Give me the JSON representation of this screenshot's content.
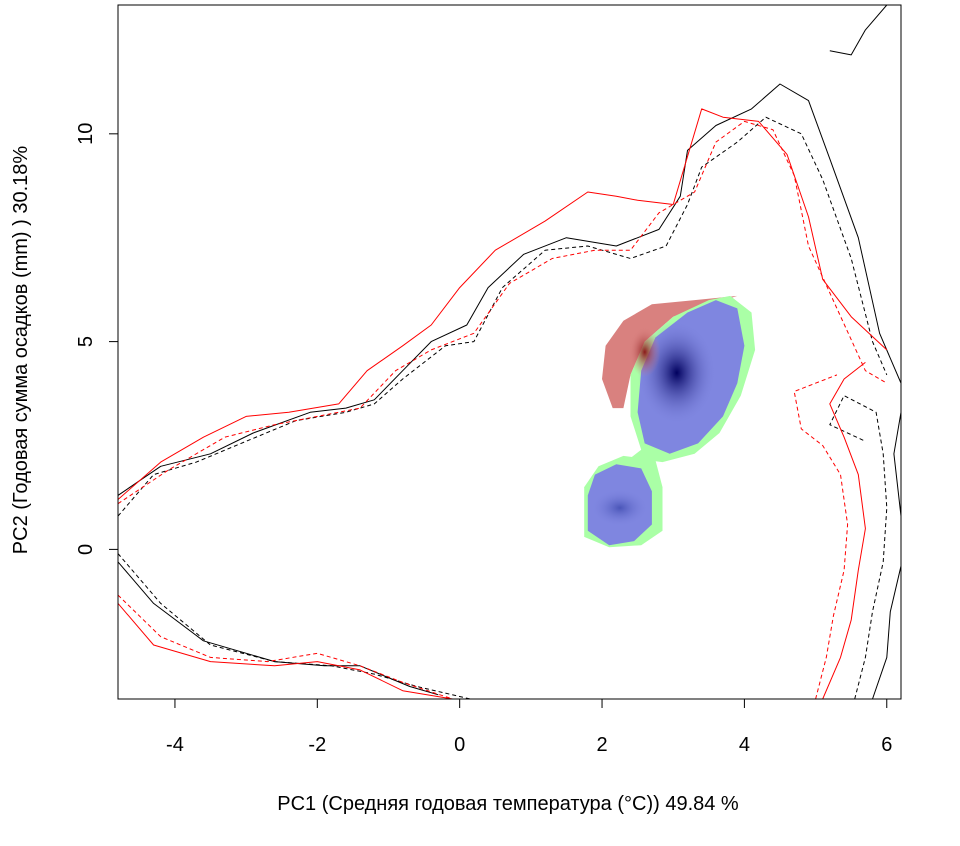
{
  "chart_data": {
    "type": "heatmap",
    "title": "",
    "xlabel": "PC1 (Средняя годовая температура (°C)) 49.84 %",
    "ylabel": "PC2 (Годовая сумма осадков  (mm) ) 30.18%",
    "xlim": [
      -4.8,
      6.2
    ],
    "ylim": [
      -3.6,
      13.1
    ],
    "x_ticks": [
      "-4",
      "-2",
      "0",
      "2",
      "4",
      "6"
    ],
    "y_ticks": [
      "0",
      "5",
      "10"
    ],
    "grid": false,
    "legend": "none",
    "colors": {
      "red_region": "#d9817f",
      "red_dark": "#8b1a1a",
      "blue_region": "#7f86e0",
      "blue_core": "#00005e",
      "green_edge": "#aaffa6",
      "contour_black": "#000000",
      "contour_red": "#ff0000"
    },
    "regions": [
      {
        "name": "red_only",
        "points": [
          [
            2.0,
            4.1
          ],
          [
            2.05,
            4.9
          ],
          [
            2.3,
            5.5
          ],
          [
            2.7,
            5.9
          ],
          [
            3.3,
            6.0
          ],
          [
            3.9,
            6.1
          ],
          [
            3.0,
            5.6
          ],
          [
            2.6,
            5.0
          ],
          [
            2.4,
            4.2
          ],
          [
            2.3,
            3.4
          ],
          [
            2.15,
            3.4
          ]
        ]
      },
      {
        "name": "green_overlap",
        "points": [
          [
            2.4,
            2.2
          ],
          [
            2.85,
            2.1
          ],
          [
            3.3,
            2.3
          ],
          [
            3.65,
            2.8
          ],
          [
            3.95,
            3.7
          ],
          [
            4.15,
            4.8
          ],
          [
            4.1,
            5.7
          ],
          [
            3.8,
            6.1
          ],
          [
            3.5,
            6.0
          ],
          [
            3.0,
            5.6
          ],
          [
            2.6,
            5.0
          ],
          [
            2.4,
            4.2
          ],
          [
            2.4,
            3.2
          ],
          [
            2.55,
            2.4
          ]
        ]
      },
      {
        "name": "blue_main",
        "points": [
          [
            2.6,
            2.55
          ],
          [
            2.95,
            2.3
          ],
          [
            3.35,
            2.55
          ],
          [
            3.7,
            3.2
          ],
          [
            3.9,
            4.0
          ],
          [
            4.0,
            4.9
          ],
          [
            3.9,
            5.8
          ],
          [
            3.6,
            6.0
          ],
          [
            3.2,
            5.7
          ],
          [
            2.75,
            5.1
          ],
          [
            2.55,
            4.3
          ],
          [
            2.5,
            3.3
          ]
        ]
      },
      {
        "name": "green_small",
        "points": [
          [
            1.75,
            0.3
          ],
          [
            2.1,
            0.05
          ],
          [
            2.55,
            0.1
          ],
          [
            2.85,
            0.45
          ],
          [
            2.85,
            1.5
          ],
          [
            2.75,
            2.15
          ],
          [
            2.3,
            2.25
          ],
          [
            1.95,
            2.0
          ],
          [
            1.75,
            1.5
          ]
        ]
      },
      {
        "name": "blue_small",
        "points": [
          [
            1.8,
            0.45
          ],
          [
            2.1,
            0.1
          ],
          [
            2.45,
            0.2
          ],
          [
            2.7,
            0.6
          ],
          [
            2.7,
            1.4
          ],
          [
            2.55,
            1.95
          ],
          [
            2.2,
            2.05
          ],
          [
            1.9,
            1.8
          ],
          [
            1.8,
            1.3
          ]
        ]
      }
    ],
    "cores": [
      {
        "name": "blue_core",
        "cx": 3.05,
        "cy": 4.25,
        "rx": 0.55,
        "ry": 1.25
      },
      {
        "name": "red_dark",
        "cx": 2.6,
        "cy": 4.75,
        "rx": 0.22,
        "ry": 0.6
      },
      {
        "name": "small_core",
        "cx": 2.25,
        "cy": 1.0,
        "rx": 0.4,
        "ry": 0.45
      }
    ],
    "contours": [
      {
        "name": "black_solid_main",
        "color": "contour_black",
        "dash": "solid",
        "points": [
          [
            -4.8,
            1.3
          ],
          [
            -4.2,
            2.0
          ],
          [
            -3.5,
            2.3
          ],
          [
            -2.9,
            2.8
          ],
          [
            -2.1,
            3.3
          ],
          [
            -1.6,
            3.4
          ],
          [
            -1.2,
            3.6
          ],
          [
            -0.8,
            4.3
          ],
          [
            -0.4,
            5.0
          ],
          [
            0.1,
            5.4
          ],
          [
            0.4,
            6.3
          ],
          [
            0.9,
            7.1
          ],
          [
            1.5,
            7.5
          ],
          [
            2.2,
            7.3
          ],
          [
            2.8,
            7.7
          ],
          [
            3.1,
            8.5
          ],
          [
            3.2,
            9.6
          ],
          [
            3.6,
            10.2
          ],
          [
            4.1,
            10.6
          ],
          [
            4.5,
            11.2
          ],
          [
            4.9,
            10.8
          ],
          [
            5.2,
            9.4
          ],
          [
            5.6,
            7.5
          ],
          [
            5.9,
            5.2
          ],
          [
            6.2,
            4.0
          ]
        ]
      },
      {
        "name": "black_dashed_main",
        "color": "contour_black",
        "dash": "dashed",
        "points": [
          [
            -4.8,
            0.8
          ],
          [
            -4.3,
            1.8
          ],
          [
            -3.7,
            2.1
          ],
          [
            -3.0,
            2.6
          ],
          [
            -2.3,
            3.1
          ],
          [
            -1.6,
            3.3
          ],
          [
            -1.2,
            3.5
          ],
          [
            -0.8,
            4.1
          ],
          [
            -0.2,
            4.9
          ],
          [
            0.2,
            5.0
          ],
          [
            0.6,
            6.3
          ],
          [
            1.2,
            7.2
          ],
          [
            1.8,
            7.3
          ],
          [
            2.4,
            7.0
          ],
          [
            2.9,
            7.3
          ],
          [
            3.2,
            8.3
          ],
          [
            3.4,
            9.2
          ],
          [
            3.9,
            9.8
          ],
          [
            4.3,
            10.4
          ],
          [
            4.8,
            10.0
          ],
          [
            5.1,
            8.9
          ],
          [
            5.5,
            7.0
          ],
          [
            5.8,
            5.0
          ],
          [
            6.0,
            4.2
          ]
        ]
      },
      {
        "name": "red_solid_main",
        "color": "contour_red",
        "dash": "solid",
        "points": [
          [
            -4.8,
            1.2
          ],
          [
            -4.2,
            2.1
          ],
          [
            -3.6,
            2.7
          ],
          [
            -3.0,
            3.2
          ],
          [
            -2.4,
            3.3
          ],
          [
            -1.7,
            3.5
          ],
          [
            -1.3,
            4.3
          ],
          [
            -0.8,
            4.9
          ],
          [
            -0.4,
            5.4
          ],
          [
            0.0,
            6.3
          ],
          [
            0.5,
            7.2
          ],
          [
            1.2,
            7.9
          ],
          [
            1.8,
            8.6
          ],
          [
            2.2,
            8.5
          ],
          [
            2.5,
            8.4
          ],
          [
            3.0,
            8.3
          ],
          [
            3.4,
            10.6
          ],
          [
            3.7,
            10.4
          ],
          [
            4.2,
            10.3
          ],
          [
            4.6,
            9.5
          ],
          [
            4.9,
            8.0
          ],
          [
            5.1,
            6.5
          ],
          [
            5.5,
            5.6
          ],
          [
            6.0,
            4.8
          ]
        ]
      },
      {
        "name": "red_dashed_main",
        "color": "contour_red",
        "dash": "dashed",
        "points": [
          [
            -4.8,
            1.1
          ],
          [
            -4.1,
            1.9
          ],
          [
            -3.3,
            2.7
          ],
          [
            -2.6,
            3.0
          ],
          [
            -2.0,
            3.2
          ],
          [
            -1.4,
            3.4
          ],
          [
            -0.9,
            4.3
          ],
          [
            -0.4,
            4.8
          ],
          [
            0.2,
            5.2
          ],
          [
            0.7,
            6.4
          ],
          [
            1.3,
            7.0
          ],
          [
            1.9,
            7.2
          ],
          [
            2.4,
            7.2
          ],
          [
            2.8,
            8.1
          ],
          [
            3.3,
            8.6
          ],
          [
            3.6,
            9.8
          ],
          [
            4.0,
            10.3
          ],
          [
            4.4,
            10.1
          ],
          [
            4.7,
            9.0
          ],
          [
            4.9,
            7.3
          ],
          [
            5.3,
            5.8
          ],
          [
            5.7,
            4.3
          ],
          [
            6.0,
            4.0
          ]
        ]
      },
      {
        "name": "black_solid_right",
        "color": "contour_black",
        "dash": "solid",
        "points": [
          [
            5.8,
            -3.6
          ],
          [
            6.0,
            -2.6
          ],
          [
            6.05,
            -1.5
          ],
          [
            6.2,
            -0.4
          ],
          [
            6.2,
            0.8
          ],
          [
            6.1,
            2.3
          ],
          [
            6.2,
            3.3
          ]
        ]
      },
      {
        "name": "black_dashed_right",
        "color": "contour_black",
        "dash": "dashed",
        "points": [
          [
            5.55,
            -3.6
          ],
          [
            5.7,
            -2.6
          ],
          [
            5.8,
            -1.5
          ],
          [
            5.95,
            -0.3
          ],
          [
            6.0,
            1.0
          ],
          [
            5.95,
            2.3
          ],
          [
            5.85,
            3.3
          ],
          [
            5.4,
            3.7
          ],
          [
            5.2,
            3.0
          ],
          [
            5.7,
            2.6
          ]
        ]
      },
      {
        "name": "red_solid_right",
        "color": "contour_red",
        "dash": "solid",
        "points": [
          [
            5.1,
            -3.6
          ],
          [
            5.35,
            -2.6
          ],
          [
            5.5,
            -1.7
          ],
          [
            5.6,
            -0.5
          ],
          [
            5.7,
            0.5
          ],
          [
            5.6,
            1.8
          ],
          [
            5.4,
            2.7
          ],
          [
            5.2,
            3.5
          ],
          [
            5.4,
            4.1
          ],
          [
            5.7,
            4.5
          ]
        ]
      },
      {
        "name": "red_dashed_right",
        "color": "contour_red",
        "dash": "dashed",
        "points": [
          [
            5.0,
            -3.6
          ],
          [
            5.15,
            -2.6
          ],
          [
            5.25,
            -1.6
          ],
          [
            5.4,
            -0.5
          ],
          [
            5.45,
            0.6
          ],
          [
            5.35,
            1.8
          ],
          [
            5.1,
            2.5
          ],
          [
            4.8,
            2.9
          ],
          [
            4.7,
            3.8
          ],
          [
            5.3,
            4.2
          ]
        ]
      },
      {
        "name": "black_solid_bottom",
        "color": "contour_black",
        "dash": "solid",
        "points": [
          [
            -4.8,
            -0.3
          ],
          [
            -4.3,
            -1.3
          ],
          [
            -3.6,
            -2.2
          ],
          [
            -2.6,
            -2.7
          ],
          [
            -1.9,
            -2.8
          ],
          [
            -1.4,
            -2.8
          ],
          [
            -0.7,
            -3.3
          ],
          [
            -0.3,
            -3.5
          ]
        ]
      },
      {
        "name": "black_dashed_bottom",
        "color": "contour_black",
        "dash": "dashed",
        "points": [
          [
            -4.8,
            -0.1
          ],
          [
            -4.2,
            -1.3
          ],
          [
            -3.5,
            -2.3
          ],
          [
            -2.6,
            -2.7
          ],
          [
            -1.8,
            -2.8
          ],
          [
            -1.2,
            -3.0
          ],
          [
            -0.6,
            -3.3
          ],
          [
            0.15,
            -3.6
          ]
        ]
      },
      {
        "name": "red_solid_bottom",
        "color": "contour_red",
        "dash": "solid",
        "points": [
          [
            -4.8,
            -1.3
          ],
          [
            -4.3,
            -2.3
          ],
          [
            -3.5,
            -2.7
          ],
          [
            -2.6,
            -2.8
          ],
          [
            -2.0,
            -2.7
          ],
          [
            -1.4,
            -2.9
          ],
          [
            -0.8,
            -3.4
          ],
          [
            -0.1,
            -3.6
          ]
        ]
      },
      {
        "name": "red_dashed_bottom",
        "color": "contour_red",
        "dash": "dashed",
        "points": [
          [
            -4.8,
            -1.1
          ],
          [
            -4.2,
            -2.1
          ],
          [
            -3.5,
            -2.6
          ],
          [
            -2.7,
            -2.7
          ],
          [
            -2.0,
            -2.5
          ],
          [
            -1.4,
            -2.8
          ],
          [
            -0.8,
            -3.2
          ],
          [
            -0.1,
            -3.6
          ]
        ]
      },
      {
        "name": "black_solid_topright",
        "color": "contour_black",
        "dash": "solid",
        "points": [
          [
            5.2,
            12.0
          ],
          [
            5.5,
            11.9
          ],
          [
            5.7,
            12.5
          ],
          [
            6.0,
            13.1
          ]
        ]
      }
    ]
  }
}
